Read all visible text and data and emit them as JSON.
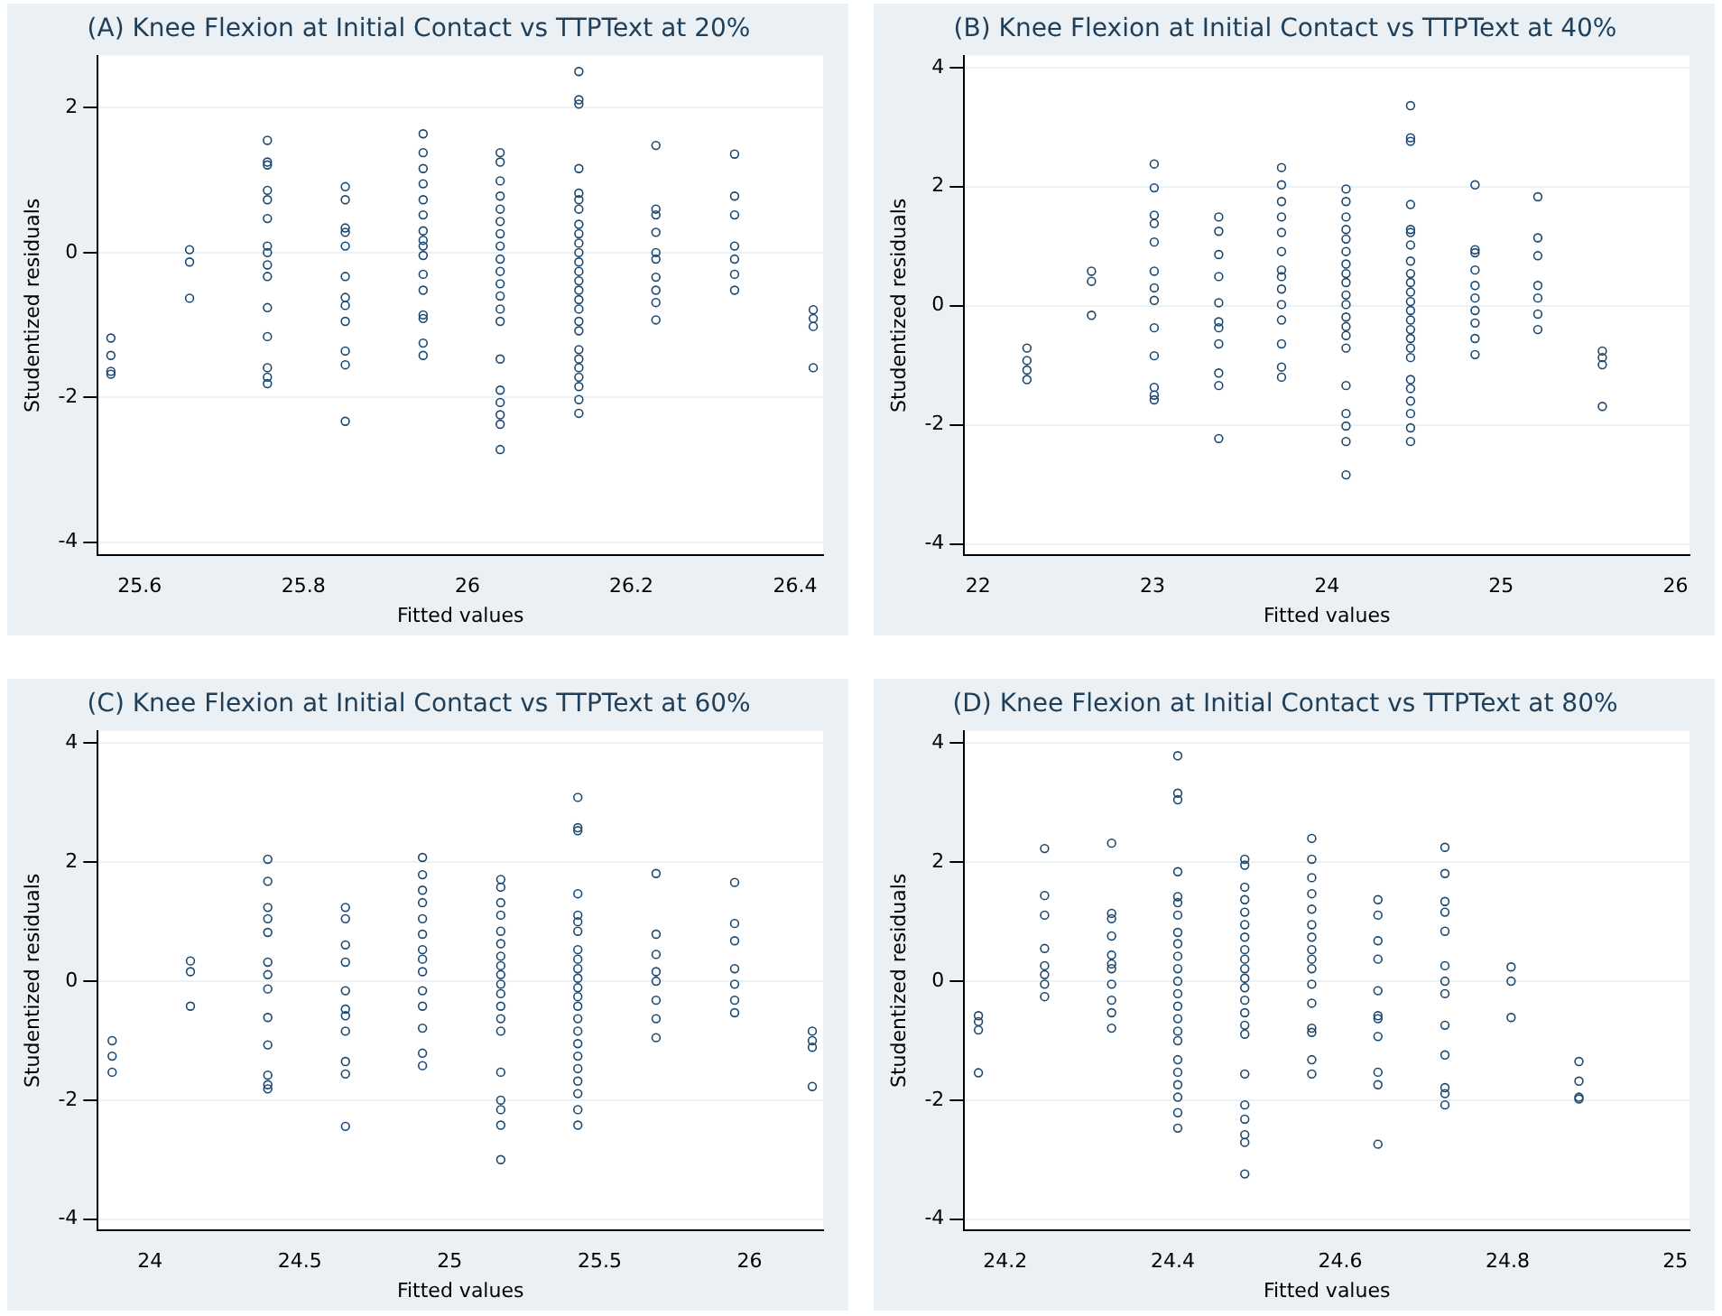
{
  "chart_data": [
    {
      "type": "scatter",
      "title": "(A) Knee Flexion at Initial Contact vs TTPText at 20%",
      "xlabel": "Fitted values",
      "ylabel": "Studentized residuals",
      "xlim": [
        25.549,
        26.434
      ],
      "ylim": [
        -4.18,
        2.72
      ],
      "xticks": [
        25.6,
        25.8,
        26,
        26.2,
        26.4
      ],
      "yticks": [
        -4,
        -2,
        0,
        2
      ],
      "grid": "y",
      "legend": false,
      "marker": "circle",
      "series": [
        {
          "color": "#1a476f",
          "x": [
            25.565,
            25.565,
            25.565,
            25.565,
            25.661,
            25.661,
            25.661,
            25.756,
            25.756,
            25.756,
            25.756,
            25.756,
            25.756,
            25.756,
            25.756,
            25.756,
            25.756,
            25.756,
            25.756,
            25.756,
            25.756,
            25.756,
            25.851,
            25.851,
            25.851,
            25.851,
            25.851,
            25.851,
            25.851,
            25.851,
            25.851,
            25.851,
            25.851,
            25.851,
            25.946,
            25.946,
            25.946,
            25.946,
            25.946,
            25.946,
            25.946,
            25.946,
            25.946,
            25.946,
            25.946,
            25.946,
            25.946,
            25.946,
            25.946,
            25.946,
            26.04,
            26.04,
            26.04,
            26.04,
            26.04,
            26.04,
            26.04,
            26.04,
            26.04,
            26.04,
            26.04,
            26.04,
            26.04,
            26.04,
            26.04,
            26.04,
            26.04,
            26.04,
            26.04,
            26.04,
            26.136,
            26.136,
            26.136,
            26.136,
            26.136,
            26.136,
            26.136,
            26.136,
            26.136,
            26.136,
            26.136,
            26.136,
            26.136,
            26.136,
            26.136,
            26.136,
            26.136,
            26.136,
            26.136,
            26.136,
            26.136,
            26.136,
            26.136,
            26.136,
            26.136,
            26.136,
            26.23,
            26.23,
            26.23,
            26.23,
            26.23,
            26.23,
            26.23,
            26.23,
            26.23,
            26.23,
            26.326,
            26.326,
            26.326,
            26.326,
            26.326,
            26.326,
            26.326,
            26.422,
            26.422,
            26.422,
            26.422
          ],
          "values": [
            -1.18,
            -1.42,
            -1.64,
            -1.68,
            0.04,
            -0.13,
            -0.63,
            1.55,
            1.25,
            1.21,
            0.86,
            0.73,
            0.47,
            0.09,
            0,
            -0.17,
            -0.33,
            -0.76,
            -1.16,
            -1.59,
            -1.72,
            -1.81,
            0.91,
            0.73,
            0.34,
            0.28,
            0.09,
            -0.33,
            -0.62,
            -0.73,
            -0.95,
            -1.36,
            -1.55,
            -2.33,
            1.64,
            1.38,
            1.16,
            0.95,
            0.73,
            0.52,
            0.3,
            0.17,
            0.09,
            -0.04,
            -0.3,
            -0.52,
            -0.86,
            -0.91,
            -1.25,
            -1.42,
            1.38,
            1.25,
            0.99,
            0.78,
            0.6,
            0.43,
            0.26,
            0.09,
            -0.09,
            -0.26,
            -0.43,
            -0.6,
            -0.78,
            -0.95,
            -1.47,
            -1.9,
            -2.07,
            -2.24,
            -2.37,
            -2.72,
            2.5,
            2.11,
            2.05,
            1.16,
            0.82,
            0.73,
            0.6,
            0.39,
            0.26,
            0.13,
            0,
            -0.13,
            -0.26,
            -0.39,
            -0.52,
            -0.65,
            -0.78,
            -0.95,
            -1.08,
            -1.34,
            -1.47,
            -1.59,
            -1.72,
            -1.85,
            -2.03,
            -2.22,
            1.48,
            0.6,
            0.52,
            0.28,
            0,
            -0.09,
            -0.34,
            -0.52,
            -0.69,
            -0.93,
            1.36,
            0.78,
            0.52,
            0.09,
            -0.09,
            -0.3,
            -0.52,
            -0.79,
            -0.91,
            -1.02,
            -1.59
          ]
        }
      ]
    },
    {
      "type": "scatter",
      "title": "(B) Knee Flexion at Initial Contact vs TTPText at 40%",
      "xlabel": "Fitted values",
      "ylabel": "Studentized residuals",
      "xlim": [
        21.92,
        26.08
      ],
      "ylim": [
        -4.19,
        4.2
      ],
      "xticks": [
        22,
        23,
        24,
        25,
        26
      ],
      "yticks": [
        -4,
        -2,
        0,
        2,
        4
      ],
      "grid": "y",
      "legend": false,
      "marker": "circle",
      "series": [
        {
          "color": "#1a476f",
          "x": [
            22.28,
            22.28,
            22.28,
            22.28,
            22.65,
            22.65,
            22.65,
            23.01,
            23.01,
            23.01,
            23.01,
            23.01,
            23.01,
            23.01,
            23.01,
            23.01,
            23.01,
            23.01,
            23.01,
            23.01,
            23.38,
            23.38,
            23.38,
            23.38,
            23.38,
            23.38,
            23.38,
            23.38,
            23.38,
            23.38,
            23.38,
            23.74,
            23.74,
            23.74,
            23.74,
            23.74,
            23.74,
            23.74,
            23.74,
            23.74,
            23.74,
            23.74,
            23.74,
            23.74,
            23.74,
            24.11,
            24.11,
            24.11,
            24.11,
            24.11,
            24.11,
            24.11,
            24.11,
            24.11,
            24.11,
            24.11,
            24.11,
            24.11,
            24.11,
            24.11,
            24.11,
            24.11,
            24.11,
            24.11,
            24.11,
            24.48,
            24.48,
            24.48,
            24.48,
            24.48,
            24.48,
            24.48,
            24.48,
            24.48,
            24.48,
            24.48,
            24.48,
            24.48,
            24.48,
            24.48,
            24.48,
            24.48,
            24.48,
            24.48,
            24.48,
            24.48,
            24.48,
            24.48,
            24.48,
            24.85,
            24.85,
            24.85,
            24.85,
            24.85,
            24.85,
            24.85,
            24.85,
            24.85,
            24.85,
            25.21,
            25.21,
            25.21,
            25.21,
            25.21,
            25.21,
            25.21,
            25.58,
            25.58,
            25.58,
            25.58
          ],
          "values": [
            -0.71,
            -0.92,
            -1.08,
            -1.24,
            0.58,
            0.41,
            -0.16,
            2.38,
            1.98,
            1.52,
            1.38,
            1.07,
            0.58,
            0.3,
            0.09,
            -0.37,
            -0.84,
            -1.37,
            -1.5,
            -1.58,
            1.49,
            1.25,
            0.86,
            0.49,
            0.05,
            -0.27,
            -0.37,
            -0.64,
            -1.13,
            -1.34,
            -2.23,
            2.32,
            2.03,
            1.75,
            1.49,
            1.23,
            0.91,
            0.6,
            0.49,
            0.28,
            0.02,
            -0.24,
            -0.64,
            -1.03,
            -1.2,
            1.96,
            1.75,
            1.49,
            1.28,
            1.12,
            0.91,
            0.7,
            0.54,
            0.39,
            0.18,
            0.02,
            -0.19,
            -0.35,
            -0.5,
            -0.71,
            -1.34,
            -1.81,
            -2.02,
            -2.28,
            -2.84,
            3.36,
            2.82,
            2.76,
            1.7,
            1.28,
            1.23,
            1.02,
            0.75,
            0.54,
            0.39,
            0.23,
            0.07,
            -0.08,
            -0.24,
            -0.4,
            -0.55,
            -0.71,
            -0.87,
            -1.24,
            -1.39,
            -1.6,
            -1.81,
            -2.05,
            -2.28,
            2.03,
            0.94,
            0.89,
            0.6,
            0.34,
            0.13,
            -0.08,
            -0.29,
            -0.55,
            -0.82,
            1.83,
            1.14,
            0.84,
            0.34,
            0.13,
            -0.14,
            -0.4,
            -0.76,
            -0.87,
            -0.99,
            -1.69
          ]
        }
      ]
    },
    {
      "type": "scatter",
      "title": "(C) Knee Flexion at Initial Contact vs TTPText at 60%",
      "xlabel": "Fitted values",
      "ylabel": "Studentized residuals",
      "xlim": [
        23.826,
        26.245
      ],
      "ylim": [
        -4.19,
        4.21
      ],
      "xticks": [
        24,
        24.5,
        25,
        25.5,
        26
      ],
      "yticks": [
        -4,
        -2,
        0,
        2,
        4
      ],
      "grid": "y",
      "legend": false,
      "marker": "circle",
      "series": [
        {
          "color": "#1a476f",
          "x": [
            23.874,
            23.874,
            23.874,
            24.135,
            24.135,
            24.135,
            24.393,
            24.393,
            24.393,
            24.393,
            24.393,
            24.393,
            24.393,
            24.393,
            24.393,
            24.393,
            24.393,
            24.393,
            24.393,
            24.652,
            24.652,
            24.652,
            24.652,
            24.652,
            24.652,
            24.652,
            24.652,
            24.652,
            24.652,
            24.652,
            24.909,
            24.909,
            24.909,
            24.909,
            24.909,
            24.909,
            24.909,
            24.909,
            24.909,
            24.909,
            24.909,
            24.909,
            24.909,
            24.909,
            25.17,
            25.17,
            25.17,
            25.17,
            25.17,
            25.17,
            25.17,
            25.17,
            25.17,
            25.17,
            25.17,
            25.17,
            25.17,
            25.17,
            25.17,
            25.17,
            25.17,
            25.17,
            25.17,
            25.427,
            25.427,
            25.427,
            25.427,
            25.427,
            25.427,
            25.427,
            25.427,
            25.427,
            25.427,
            25.427,
            25.427,
            25.427,
            25.427,
            25.427,
            25.427,
            25.427,
            25.427,
            25.427,
            25.427,
            25.427,
            25.427,
            25.427,
            25.688,
            25.688,
            25.688,
            25.688,
            25.688,
            25.688,
            25.688,
            25.688,
            25.95,
            25.95,
            25.95,
            25.95,
            25.95,
            25.95,
            25.95,
            26.209,
            26.209,
            26.209,
            26.209
          ],
          "values": [
            -1,
            -1.26,
            -1.53,
            0.34,
            0.16,
            -0.42,
            2.05,
            1.68,
            1.24,
            1.05,
            0.82,
            0.32,
            0.11,
            -0.13,
            -0.61,
            -1.07,
            -1.58,
            -1.74,
            -1.81,
            1.24,
            1.05,
            0.61,
            0.32,
            -0.16,
            -0.47,
            -0.58,
            -0.84,
            -1.35,
            -1.56,
            -2.44,
            2.08,
            1.79,
            1.53,
            1.32,
            1.05,
            0.79,
            0.53,
            0.37,
            0.16,
            -0.16,
            -0.42,
            -0.79,
            -1.21,
            -1.42,
            1.71,
            1.58,
            1.32,
            1.11,
            0.84,
            0.63,
            0.42,
            0.26,
            0.11,
            -0.05,
            -0.21,
            -0.42,
            -0.63,
            -0.84,
            -1.53,
            -2,
            -2.16,
            -2.42,
            -3,
            3.09,
            2.58,
            2.53,
            1.47,
            1.11,
            1,
            0.84,
            0.53,
            0.37,
            0.21,
            0.05,
            -0.11,
            -0.26,
            -0.42,
            -0.63,
            -0.84,
            -1.05,
            -1.26,
            -1.47,
            -1.68,
            -1.89,
            -2.16,
            -2.42,
            1.81,
            0.79,
            0.45,
            0.16,
            0,
            -0.32,
            -0.63,
            -0.95,
            1.66,
            0.97,
            0.68,
            0.21,
            -0.05,
            -0.32,
            -0.53,
            -0.84,
            -1,
            -1.11,
            -1.77
          ]
        }
      ]
    },
    {
      "type": "scatter",
      "title": "(D) Knee Flexion at Initial Contact vs TTPText at 80%",
      "xlabel": "Fitted values",
      "ylabel": "Studentized residuals",
      "xlim": [
        24.151,
        25.017
      ],
      "ylim": [
        -4.19,
        4.21
      ],
      "xticks": [
        24.2,
        24.4,
        24.6,
        24.8,
        25
      ],
      "yticks": [
        -4,
        -2,
        0,
        2,
        4
      ],
      "grid": "y",
      "legend": false,
      "marker": "circle",
      "series": [
        {
          "color": "#1a476f",
          "x": [
            24.168,
            24.168,
            24.168,
            24.168,
            24.247,
            24.247,
            24.247,
            24.247,
            24.247,
            24.247,
            24.247,
            24.247,
            24.327,
            24.327,
            24.327,
            24.327,
            24.327,
            24.327,
            24.327,
            24.327,
            24.327,
            24.327,
            24.327,
            24.406,
            24.406,
            24.406,
            24.406,
            24.406,
            24.406,
            24.406,
            24.406,
            24.406,
            24.406,
            24.406,
            24.406,
            24.406,
            24.406,
            24.406,
            24.406,
            24.406,
            24.406,
            24.406,
            24.406,
            24.406,
            24.406,
            24.406,
            24.486,
            24.486,
            24.486,
            24.486,
            24.486,
            24.486,
            24.486,
            24.486,
            24.486,
            24.486,
            24.486,
            24.486,
            24.486,
            24.486,
            24.486,
            24.486,
            24.486,
            24.486,
            24.486,
            24.486,
            24.486,
            24.486,
            24.566,
            24.566,
            24.566,
            24.566,
            24.566,
            24.566,
            24.566,
            24.566,
            24.566,
            24.566,
            24.566,
            24.566,
            24.566,
            24.566,
            24.566,
            24.566,
            24.645,
            24.645,
            24.645,
            24.645,
            24.645,
            24.645,
            24.645,
            24.645,
            24.645,
            24.645,
            24.645,
            24.725,
            24.725,
            24.725,
            24.725,
            24.725,
            24.725,
            24.725,
            24.725,
            24.725,
            24.725,
            24.725,
            24.725,
            24.725,
            24.804,
            24.804,
            24.804,
            24.885,
            24.885,
            24.885,
            24.885
          ],
          "values": [
            -0.58,
            -0.68,
            -0.82,
            -1.54,
            2.23,
            1.44,
            1.11,
            0.55,
            0.26,
            0.11,
            -0.05,
            -0.26,
            2.32,
            1.14,
            1.05,
            0.76,
            0.44,
            0.29,
            0.21,
            -0.05,
            -0.32,
            -0.53,
            -0.79,
            3.79,
            3.16,
            3.05,
            1.84,
            1.42,
            1.32,
            1.11,
            0.82,
            0.63,
            0.42,
            0.21,
            0,
            -0.21,
            -0.42,
            -0.63,
            -0.84,
            -1,
            -1.32,
            -1.53,
            -1.74,
            -1.95,
            -2.21,
            -2.47,
            2.05,
            1.95,
            1.58,
            1.37,
            1.16,
            0.95,
            0.74,
            0.53,
            0.37,
            0.21,
            0.05,
            -0.11,
            -0.32,
            -0.53,
            -0.74,
            -0.89,
            -1.56,
            -2.08,
            -2.32,
            -2.58,
            -2.71,
            -3.24,
            2.4,
            2.05,
            1.74,
            1.47,
            1.21,
            0.95,
            0.74,
            0.53,
            0.37,
            0.21,
            -0.05,
            -0.37,
            -0.79,
            -0.86,
            -1.32,
            -1.56,
            1.37,
            1.11,
            0.68,
            0.37,
            -0.16,
            -0.58,
            -0.63,
            -0.93,
            -1.53,
            -1.74,
            -2.74,
            2.25,
            1.81,
            1.34,
            1.16,
            0.84,
            0.26,
            0,
            -0.21,
            -0.74,
            -1.24,
            -1.79,
            -1.89,
            -2.08,
            0.24,
            0,
            -0.61,
            -1.35,
            -1.68,
            -1.95,
            -1.98
          ]
        }
      ]
    }
  ]
}
